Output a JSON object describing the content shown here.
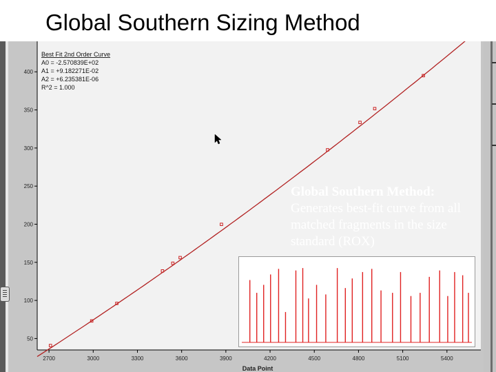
{
  "slide": {
    "title": "Global Southern Sizing Method"
  },
  "fit_box": {
    "heading": "Best Fit 2nd Order Curve",
    "lines": [
      "A0 = -2.570839E+02",
      "A1 = +9.182271E-02",
      "A2 = +6.235381E-06",
      "R^2 = 1.000"
    ]
  },
  "overlay": {
    "heading": "Global Southern Method:",
    "body": "Generates best-fit curve from all matched fragments in the size standard (ROX)"
  },
  "colors": {
    "plot_background": "#f2f2f2",
    "curve": "#b22222",
    "point": "#cc2222",
    "inset_peaks": "#e02020"
  },
  "chart_data": [
    {
      "type": "scatter",
      "title": "",
      "xlabel": "Data Point",
      "ylabel": "",
      "xlim": [
        2620,
        5630
      ],
      "ylim": [
        35,
        440
      ],
      "x_ticks": [
        2700,
        3000,
        3300,
        3600,
        3900,
        4200,
        4500,
        4800,
        5100,
        5400
      ],
      "x_tick_labels": [
        "2700",
        "3000",
        "3300",
        "3600",
        "3900",
        "4200",
        "4500",
        "4800",
        "5100",
        "5400"
      ],
      "y_ticks": [
        50,
        100,
        150,
        200,
        250,
        300,
        350,
        400
      ],
      "y_tick_labels": [
        "50",
        "100",
        "150",
        "200",
        "250",
        "300",
        "350",
        "400"
      ],
      "grid": false,
      "fit_coefficients": {
        "a0": -257.0839,
        "a1": 0.09182271,
        "a2": 6.235381e-06
      },
      "fit_x_range": [
        2620,
        5600
      ],
      "points": {
        "x": [
          2710,
          2990,
          3160,
          3470,
          3540,
          3590,
          3870,
          4590,
          4810,
          4910,
          5240
        ],
        "y": [
          40.8,
          73.1,
          96.1,
          138.7,
          148.8,
          156.2,
          199.8,
          297.6,
          333.6,
          351.7,
          395.0
        ]
      }
    },
    {
      "type": "line",
      "title": "",
      "series_name": "",
      "ylim": [
        0,
        1
      ],
      "peaks": {
        "x": [
          0.035,
          0.065,
          0.095,
          0.125,
          0.16,
          0.19,
          0.235,
          0.265,
          0.29,
          0.325,
          0.365,
          0.415,
          0.45,
          0.48,
          0.525,
          0.565,
          0.605,
          0.655,
          0.69,
          0.735,
          0.775,
          0.815,
          0.86,
          0.895,
          0.925,
          0.96,
          0.985
        ],
        "y": [
          0.78,
          0.62,
          0.72,
          0.85,
          0.92,
          0.38,
          0.9,
          0.93,
          0.55,
          0.72,
          0.6,
          0.93,
          0.68,
          0.8,
          0.88,
          0.92,
          0.65,
          0.62,
          0.88,
          0.58,
          0.62,
          0.82,
          0.9,
          0.58,
          0.88,
          0.84,
          0.62
        ]
      }
    }
  ]
}
